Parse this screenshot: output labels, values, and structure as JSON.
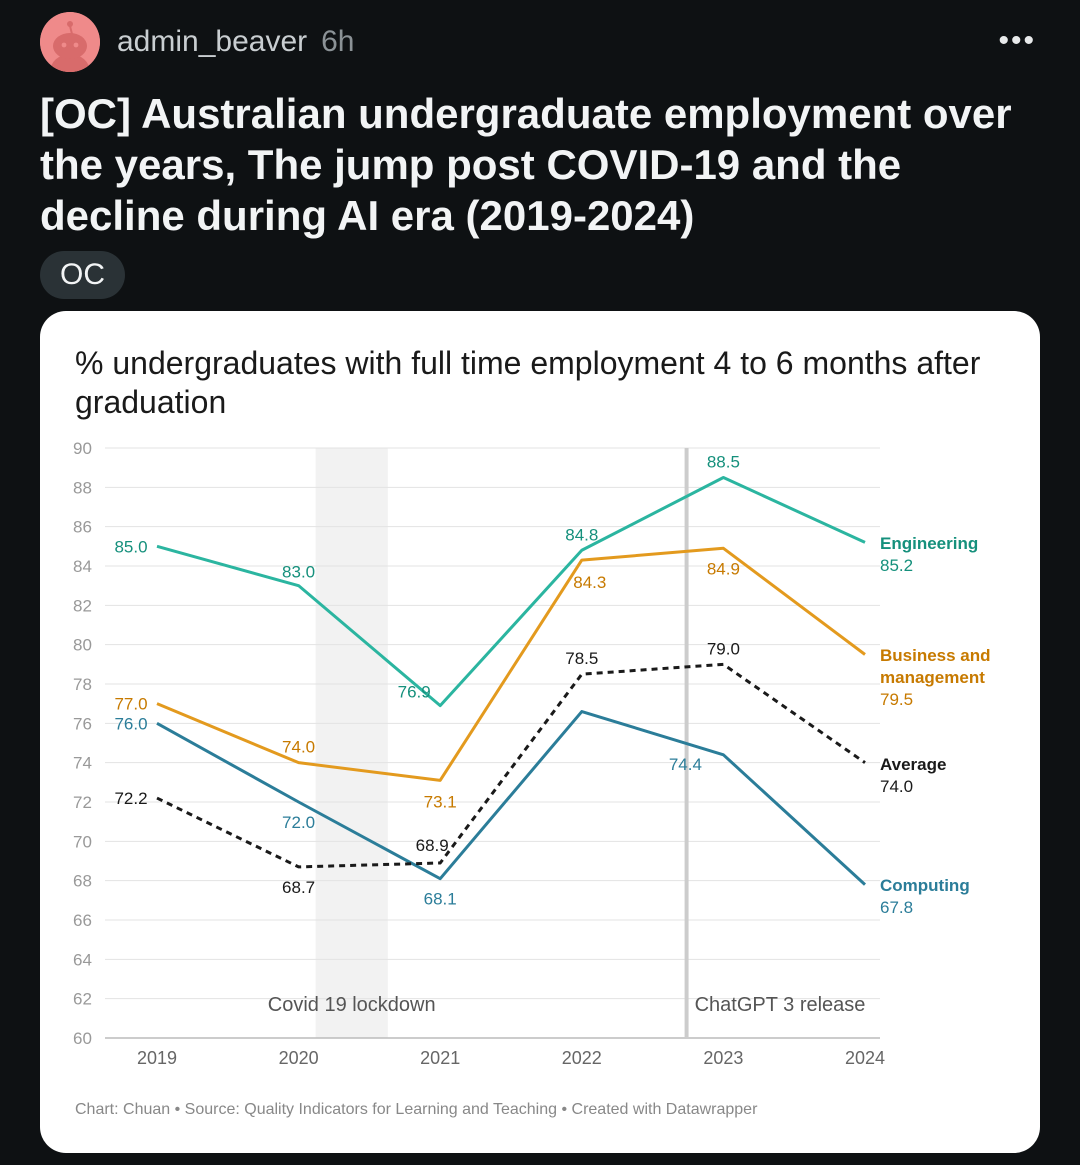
{
  "post": {
    "author": "admin_beaver",
    "time": "6h",
    "more_label": "•••",
    "title": "[OC] Australian undergraduate employment over the years, The jump post COVID-19 and the decline during AI era (2019-2024)",
    "flair": "OC"
  },
  "colors": {
    "Engineering": "#2bb5a0",
    "Business and management": "#e39a1e",
    "Average": "#1a1a1a",
    "Computing": "#2b7d99",
    "engineering_text": "#15907c",
    "business_text": "#c77a00",
    "computing_text": "#2b7d99"
  },
  "chart_data": {
    "type": "line",
    "title": "% undergraduates with full time employment 4 to 6 months after graduation",
    "x": [
      "2019",
      "2020",
      "2021",
      "2022",
      "2023",
      "2024"
    ],
    "y_ticks": [
      "90",
      "88",
      "86",
      "84",
      "82",
      "80",
      "78",
      "76",
      "74",
      "72",
      "70",
      "68",
      "66",
      "64",
      "62",
      "60"
    ],
    "ylim": [
      60,
      90
    ],
    "grid": true,
    "series": [
      {
        "name": "Engineering",
        "values": [
          85.0,
          83.0,
          76.9,
          84.8,
          88.5,
          85.2
        ],
        "labels": [
          "85.0",
          "83.0",
          "76.9",
          "84.8",
          "88.5",
          "85.2"
        ]
      },
      {
        "name": "Business and management",
        "values": [
          77.0,
          74.0,
          73.1,
          84.3,
          84.9,
          79.5
        ],
        "labels": [
          "77.0",
          "74.0",
          "73.1",
          "84.3",
          "84.9",
          "79.5"
        ]
      },
      {
        "name": "Average",
        "values": [
          72.2,
          68.7,
          68.9,
          78.5,
          79.0,
          74.0
        ],
        "labels": [
          "72.2",
          "68.7",
          "68.9",
          "78.5",
          "79.0",
          "74.0"
        ],
        "dashed": true
      },
      {
        "name": "Computing",
        "values": [
          76.0,
          72.0,
          68.1,
          76.6,
          74.4,
          67.8
        ],
        "labels": [
          "76.0",
          "72.0",
          "68.1",
          "",
          "74.4",
          "67.8"
        ]
      }
    ],
    "annotations": [
      {
        "text": "Covid 19 lockdown",
        "x_from": 2020.12,
        "x_to": 2020.63
      },
      {
        "text": "ChatGPT 3 release",
        "x": 2022.74
      }
    ],
    "legend_placement": "right, direct labels",
    "footer": "Chart: Chuan • Source: Quality Indicators for Learning and Teaching • Created with Datawrapper"
  }
}
